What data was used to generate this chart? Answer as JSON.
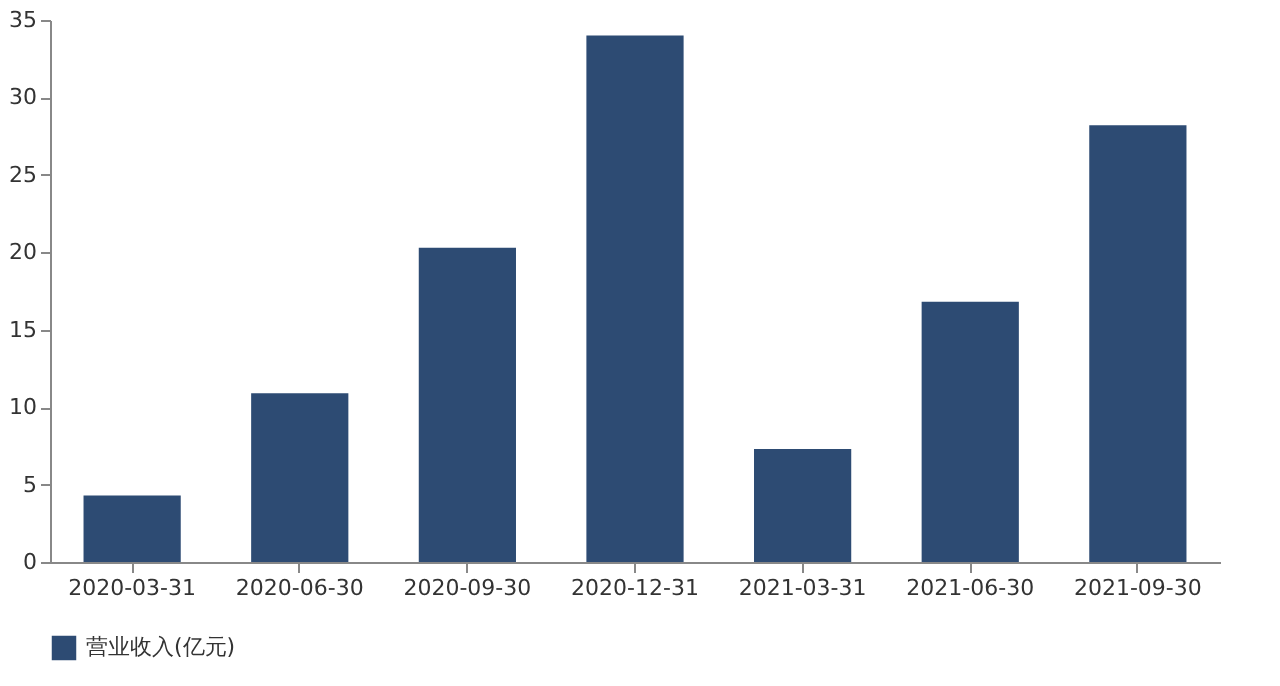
{
  "chart_data": {
    "type": "bar",
    "categories": [
      "2020-03-31",
      "2020-06-30",
      "2020-09-30",
      "2020-12-31",
      "2021-03-31",
      "2021-06-30",
      "2021-09-30"
    ],
    "series": [
      {
        "name": "营业收入(亿元)",
        "color": "#2d4b73",
        "values": [
          4.3,
          10.9,
          20.3,
          34.0,
          7.3,
          16.8,
          28.2
        ]
      }
    ],
    "ylim": [
      0,
      35
    ],
    "yticks": [
      0,
      5,
      10,
      15,
      20,
      25,
      30,
      35
    ],
    "grid": false,
    "legend": "bottom"
  }
}
